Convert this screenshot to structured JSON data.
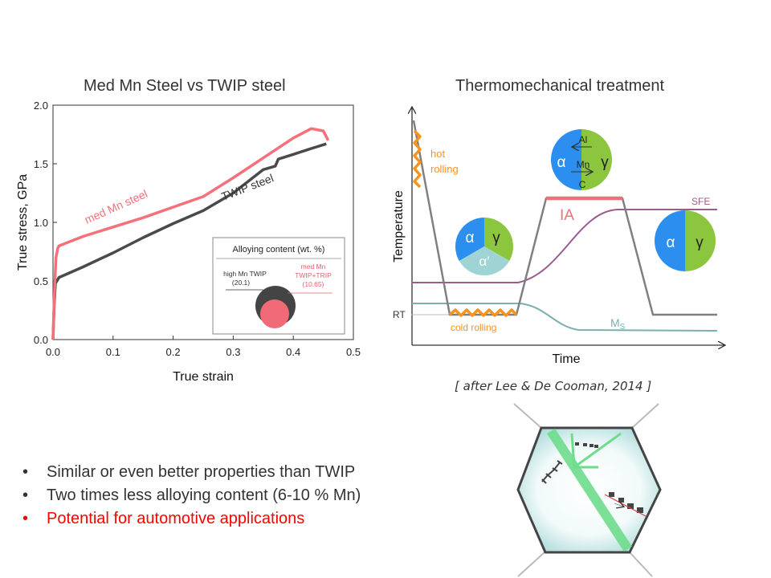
{
  "chart_data": [
    {
      "type": "line",
      "title": "Med Mn Steel vs TWIP steel",
      "xlabel": "True strain",
      "ylabel": "True stress, GPa",
      "xlim": [
        0,
        0.5
      ],
      "ylim": [
        0,
        2.0
      ],
      "x_ticks": [
        "0.0",
        "0.1",
        "0.2",
        "0.3",
        "0.4",
        "0.5"
      ],
      "y_ticks": [
        "0.0",
        "0.5",
        "1.0",
        "1.5",
        "2.0"
      ],
      "series": [
        {
          "name": "med Mn steel",
          "color": "#f4707a",
          "points": [
            [
              0.0,
              0.0
            ],
            [
              0.002,
              0.35
            ],
            [
              0.005,
              0.7
            ],
            [
              0.008,
              0.78
            ],
            [
              0.01,
              0.8
            ],
            [
              0.03,
              0.84
            ],
            [
              0.05,
              0.88
            ],
            [
              0.1,
              0.96
            ],
            [
              0.15,
              1.04
            ],
            [
              0.2,
              1.13
            ],
            [
              0.25,
              1.22
            ],
            [
              0.3,
              1.38
            ],
            [
              0.35,
              1.55
            ],
            [
              0.4,
              1.72
            ],
            [
              0.43,
              1.8
            ],
            [
              0.45,
              1.78
            ],
            [
              0.458,
              1.7
            ]
          ]
        },
        {
          "name": "TWIP steel",
          "color": "#4a4a4a",
          "points": [
            [
              0.0,
              0.0
            ],
            [
              0.002,
              0.3
            ],
            [
              0.004,
              0.48
            ],
            [
              0.01,
              0.53
            ],
            [
              0.05,
              0.62
            ],
            [
              0.1,
              0.74
            ],
            [
              0.15,
              0.87
            ],
            [
              0.2,
              0.99
            ],
            [
              0.25,
              1.1
            ],
            [
              0.3,
              1.25
            ],
            [
              0.35,
              1.45
            ],
            [
              0.37,
              1.48
            ],
            [
              0.375,
              1.54
            ],
            [
              0.4,
              1.58
            ],
            [
              0.43,
              1.63
            ],
            [
              0.455,
              1.67
            ]
          ]
        }
      ],
      "inset": {
        "title": "Alloying content (wt. %)",
        "items": [
          {
            "label": "high Mn TWIP",
            "value": "(20.1)",
            "color": "#444444"
          },
          {
            "label": "med Mn",
            "label2": "TWIP+TRIP",
            "value": "(10.65)",
            "color": "#f06a77"
          }
        ]
      }
    },
    {
      "type": "diagram",
      "title": "Thermomechanical treatment",
      "xlabel": "Time",
      "ylabel": "Temperature",
      "labels": {
        "rt": "RT",
        "hot_rolling_1": "hot",
        "hot_rolling_2": "rolling",
        "cold_rolling": "cold rolling",
        "ia": "IA",
        "sfe": "SFE",
        "ms": "M",
        "ms_sub": "S",
        "alpha": "α",
        "gamma": "γ",
        "alpha_prime": "α′",
        "al": "Al",
        "mn": "Mn",
        "c": "C"
      },
      "colors": {
        "temp_line": "#808080",
        "rolling": "#f7931e",
        "ia": "#f0707a",
        "sfe": "#9b5b8e",
        "ms": "#79b1b0",
        "alpha_phase": "#2c8ff0",
        "gamma_phase": "#8cc63f",
        "alpha_prime_phase": "#9fd4d4"
      }
    }
  ],
  "credit": "[ after Lee & De Cooman, 2014 ]",
  "bullets": [
    {
      "text": "Similar or even better properties than TWIP",
      "color": "#333333"
    },
    {
      "text": "Two times less alloying content (6-10 % Mn)",
      "color": "#333333"
    },
    {
      "text": "Potential for automotive applications",
      "color": "#ff0000"
    }
  ]
}
